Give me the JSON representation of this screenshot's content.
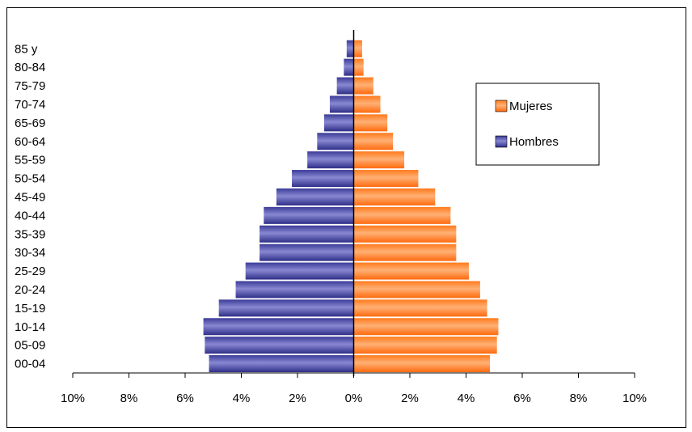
{
  "chart_data": {
    "type": "bar",
    "orientation": "horizontal",
    "layout": "population-pyramid",
    "categories": [
      "00-04",
      "05-09",
      "10-14",
      "15-19",
      "20-24",
      "25-29",
      "30-34",
      "35-39",
      "40-44",
      "45-49",
      "50-54",
      "55-59",
      "60-64",
      "65-69",
      "70-74",
      "75-79",
      "80-84",
      "85 y"
    ],
    "series": [
      {
        "name": "Mujeres",
        "side": "right",
        "color": "#ff7a1c",
        "values": [
          4.85,
          5.1,
          5.15,
          4.75,
          4.5,
          4.1,
          3.65,
          3.65,
          3.45,
          2.9,
          2.3,
          1.8,
          1.4,
          1.2,
          0.95,
          0.7,
          0.35,
          0.3
        ]
      },
      {
        "name": "Hombres",
        "side": "left",
        "color": "#4b4ba8",
        "values": [
          5.15,
          5.3,
          5.35,
          4.8,
          4.2,
          3.85,
          3.35,
          3.35,
          3.2,
          2.75,
          2.2,
          1.65,
          1.3,
          1.05,
          0.85,
          0.6,
          0.35,
          0.25
        ]
      }
    ],
    "x_ticks": [
      "10%",
      "8%",
      "6%",
      "4%",
      "2%",
      "0%",
      "2%",
      "4%",
      "6%",
      "8%",
      "10%"
    ],
    "xlim": [
      -10,
      10
    ],
    "xlabel": "",
    "ylabel": "",
    "grid": false,
    "legend_position": "right"
  }
}
